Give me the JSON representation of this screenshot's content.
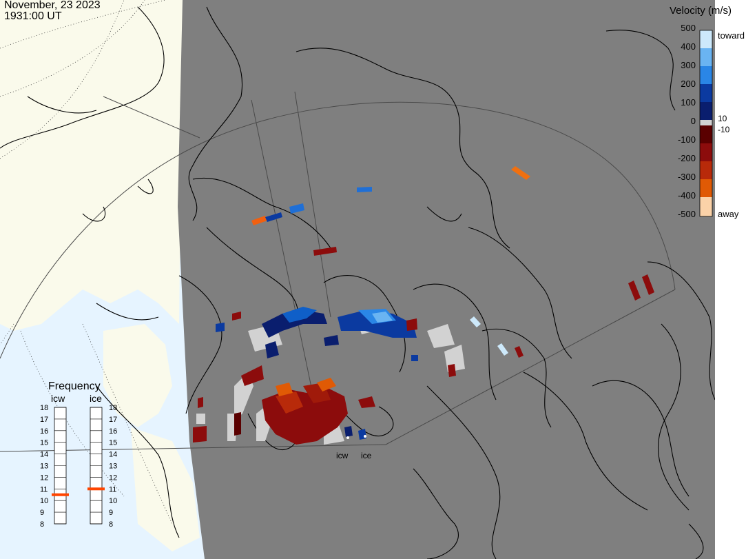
{
  "header": {
    "date": "November, 23 2023",
    "time": "1931:00 UT"
  },
  "velocity_scale": {
    "title": "Velocity (m/s)",
    "ticks": [
      "500",
      "400",
      "300",
      "200",
      "100",
      "0",
      "-100",
      "-200",
      "-300",
      "-400",
      "-500"
    ],
    "toward_label": "toward",
    "away_label": "away",
    "threshold_pos": "10",
    "threshold_neg": "-10",
    "toward_colors": [
      "#0a1e6e",
      "#0b3aa0",
      "#0f5fc8",
      "#2a86e6",
      "#6ab4f2",
      "#cde9fb"
    ],
    "away_colors": [
      "#5a0000",
      "#8c0c0c",
      "#b82a0a",
      "#e05a05",
      "#f08a20",
      "#fbd2a8"
    ]
  },
  "frequency_panel": {
    "title": "Frequency",
    "radars": [
      {
        "name": "icw",
        "value_mhz": 10.5
      },
      {
        "name": "ice",
        "value_mhz": 11.0
      }
    ],
    "scale": [
      "18",
      "17",
      "16",
      "15",
      "14",
      "13",
      "12",
      "11",
      "10",
      "9",
      "8"
    ],
    "indicator_color": "#ff4500"
  },
  "radar_sites": [
    {
      "label": "icw"
    },
    {
      "label": "ice"
    }
  ],
  "colors": {
    "fov_gray": "#7f7f7f",
    "land_day": "#fafaeb",
    "ocean_day": "#e6f4ff",
    "ground_scatter": "#d2d2d2"
  }
}
